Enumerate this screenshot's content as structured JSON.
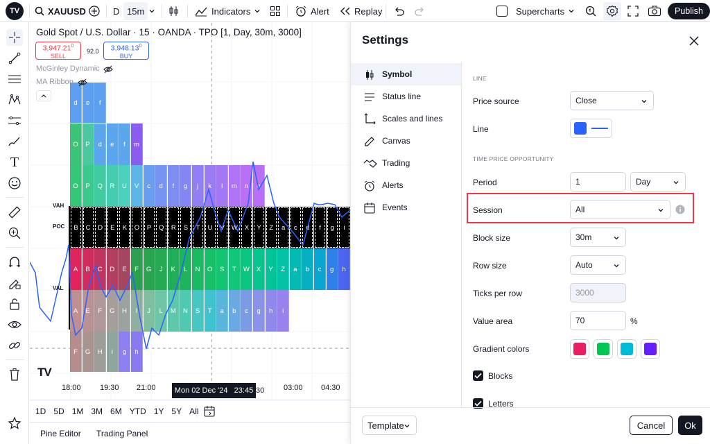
{
  "topbar": {
    "symbol": "XAUUSD",
    "interval_d": "D",
    "interval_active": "15m",
    "indicators": "Indicators",
    "alert": "Alert",
    "replay": "Replay",
    "layout": "Supercharts",
    "publish": "Publish"
  },
  "chart": {
    "title": "Gold Spot / U.S. Dollar · 15 · OANDA · TPO [1, Day, 30m, 3000]",
    "sell_price": "3,947.21",
    "sell_price_sup": "0",
    "sell_label": "SELL",
    "spread": "92.0",
    "buy_price": "3,948.13",
    "buy_price_sup": "0",
    "buy_label": "BUY",
    "legend_1": "McGinley Dynamic",
    "legend_2": "MA Ribbon",
    "vah": "VAH",
    "poc": "POC",
    "val": "VAL",
    "time_labels": [
      "18:00",
      "19:30",
      "21:00",
      "03:00",
      "04:30"
    ],
    "crosshair_time": "Mon 02 Dec '24   23:45",
    "crosshair_tail": "30",
    "watermark": "TV",
    "colors": {
      "line": "#2962ff",
      "black_row": "#000000"
    }
  },
  "ranges": [
    "1D",
    "5D",
    "1M",
    "3M",
    "6M",
    "YTD",
    "1Y",
    "5Y",
    "All"
  ],
  "bottom_tabs": [
    "Pine Editor",
    "Trading Panel"
  ],
  "settings": {
    "title": "Settings",
    "nav": [
      "Symbol",
      "Status line",
      "Scales and lines",
      "Canvas",
      "Trading",
      "Alerts",
      "Events"
    ],
    "nav_active": "Symbol",
    "section_line": "LINE",
    "price_source_label": "Price source",
    "price_source_value": "Close",
    "line_label": "Line",
    "line_color": "#2962ff",
    "section_tpo": "TIME PRICE OPPORTUNITY",
    "period_label": "Period",
    "period_value": "1",
    "period_unit": "Day",
    "session_label": "Session",
    "session_value": "All",
    "highlight_color": "#f23645",
    "block_size_label": "Block size",
    "block_size_value": "30m",
    "row_size_label": "Row size",
    "row_size_value": "Auto",
    "ticks_label": "Ticks per row",
    "ticks_placeholder": "3000",
    "value_area_label": "Value area",
    "value_area_value": "70",
    "value_area_unit": "%",
    "gradient_label": "Gradient colors",
    "gradient_colors": [
      "#e91e63",
      "#00c853",
      "#00bcd4",
      "#651fff"
    ],
    "blocks_label": "Blocks",
    "letters_label": "Letters",
    "template": "Template",
    "cancel": "Cancel",
    "ok": "Ok"
  }
}
